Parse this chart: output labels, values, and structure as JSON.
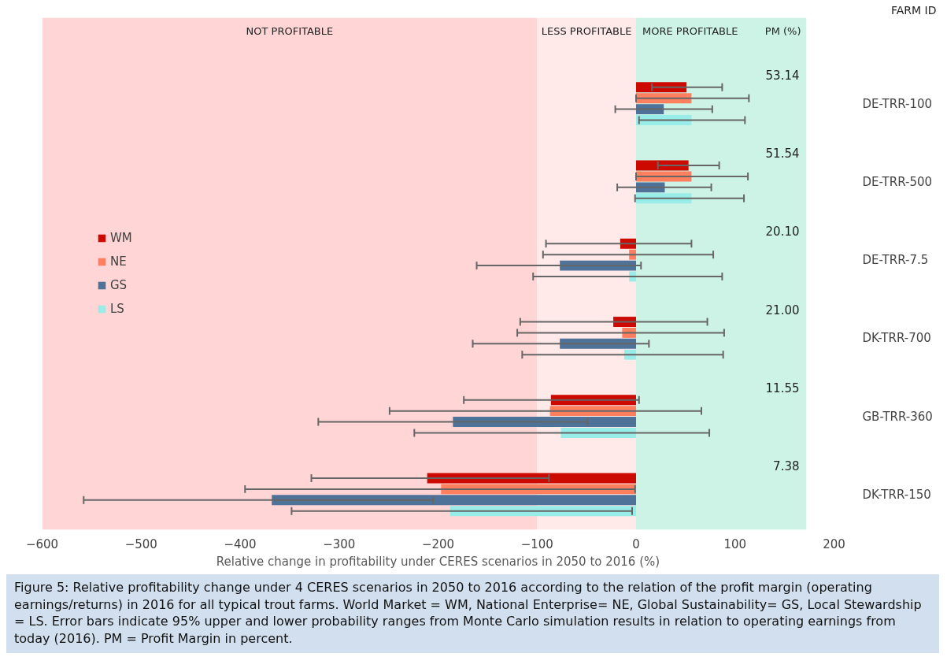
{
  "chart_data": {
    "type": "bar",
    "orientation": "horizontal",
    "categories": [
      "DE-TRR-100",
      "DE-TRR-500",
      "DE-TRR-7.5",
      "DK-TRR-700",
      "GB-TRR-360",
      "DK-TRR-150"
    ],
    "xlabel": "Relative change in profitability under CERES scenarios in 2050 to 2016 (%)",
    "ylabel": "FARM ID",
    "xlim": [
      -600,
      200
    ],
    "xticks": [
      -600,
      -500,
      -400,
      -300,
      -200,
      -100,
      0,
      100,
      200
    ],
    "series": [
      {
        "name": "WM",
        "color": "#cc0a00",
        "values": [
          51,
          53,
          -16,
          -23,
          -86,
          -211
        ],
        "errors": [
          [
            16,
            87
          ],
          [
            22,
            84
          ],
          [
            -91,
            56
          ],
          [
            -117,
            72
          ],
          [
            -174,
            3
          ],
          [
            -328,
            -88
          ]
        ]
      },
      {
        "name": "NE",
        "color": "#ff7f5f",
        "values": [
          56,
          56,
          -7,
          -14,
          -87,
          -197
        ],
        "errors": [
          [
            0,
            114
          ],
          [
            0,
            113
          ],
          [
            -94,
            78
          ],
          [
            -120,
            89
          ],
          [
            -249,
            66
          ],
          [
            -395,
            -1
          ]
        ]
      },
      {
        "name": "GS",
        "color": "#4f7298",
        "values": [
          28,
          29,
          -77,
          -77,
          -185,
          -368
        ],
        "errors": [
          [
            -21,
            77
          ],
          [
            -19,
            76
          ],
          [
            -161,
            5
          ],
          [
            -165,
            13
          ],
          [
            -321,
            -49
          ],
          [
            -558,
            -205
          ]
        ]
      },
      {
        "name": "LS",
        "color": "#99ede8",
        "values": [
          56,
          56,
          -7,
          -12,
          -76,
          -188
        ],
        "errors": [
          [
            3,
            110
          ],
          [
            -1,
            109
          ],
          [
            -104,
            87
          ],
          [
            -115,
            88
          ],
          [
            -224,
            74
          ],
          [
            -348,
            -4
          ]
        ]
      }
    ],
    "bands": [
      {
        "axis": "x",
        "from": -600,
        "to": -100,
        "label": "NOT PROFITABLE",
        "color": "#ffd5d5"
      },
      {
        "axis": "x",
        "from": -100,
        "to": 0,
        "label": "LESS PROFITABLE",
        "color": "#ffe9e9"
      },
      {
        "axis": "x",
        "from": 0,
        "to": 172,
        "label": "MORE PROFITABLE",
        "color": "#cdf3e6"
      }
    ],
    "annotations": [
      "PM (%)",
      "53.14",
      "51.54",
      "20.10",
      "21.00",
      "11.55",
      "7.38",
      "Figure 5: Relative profitability change under 4 CERES scenarios in 2050 to 2016 according to the relation of the profit margin (operating earnings/returns) in 2016 for all typical trout farms. World Market = WM, National Enterprise= NE, Global Sustainability= GS, Local Stewardship = LS. Error bars indicate 95% upper and lower probability ranges from Monte Carlo simulation results in relation to operating earnings from today (2016). PM = Profit Margin in percent."
    ],
    "legend": "left",
    "grid": false
  }
}
